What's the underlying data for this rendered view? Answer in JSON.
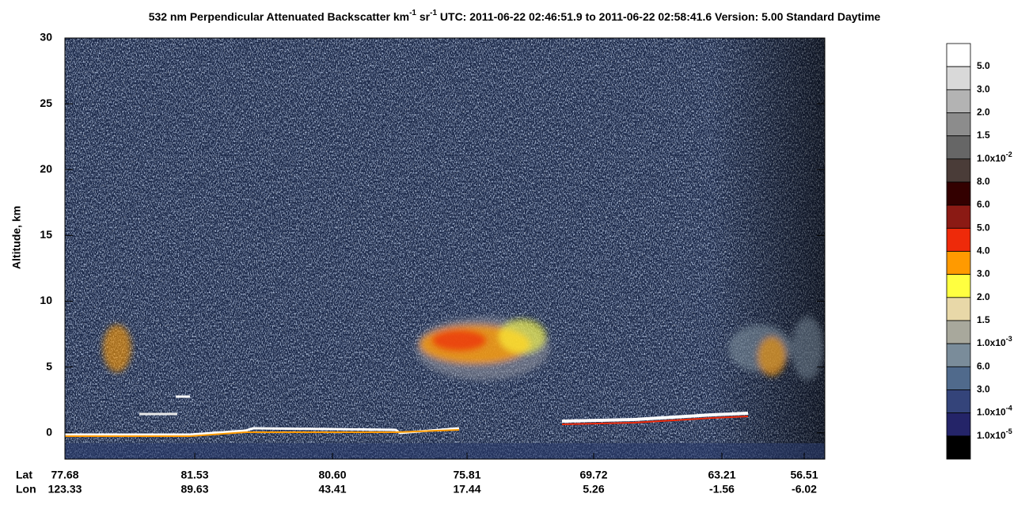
{
  "chart_data": {
    "type": "heatmap",
    "title_parts": [
      "532 nm Perpendicular Attenuated Backscatter km",
      "-1",
      " sr",
      "-1",
      "  UTC: 2011-06-22 02:46:51.9 to 2011-06-22 02:58:41.6  Version: 5.00 Standard Daytime"
    ],
    "ylabel": "Altitude, km",
    "ylim": [
      -2,
      30
    ],
    "yticks": [
      0,
      5,
      10,
      15,
      20,
      25,
      30
    ],
    "x_rows": [
      {
        "name": "Lat",
        "values": [
          77.68,
          81.53,
          80.6,
          75.81,
          69.72,
          63.21,
          56.51
        ],
        "value_labels": [
          "77.68",
          "81.53",
          "80.60",
          "75.81",
          "69.72",
          "63.21",
          "56.51"
        ]
      },
      {
        "name": "Lon",
        "values": [
          123.33,
          89.63,
          43.41,
          17.44,
          5.26,
          -1.56,
          -6.02
        ]
      }
    ],
    "colorbar": {
      "colors": [
        "#ffffff",
        "#d9d9d9",
        "#b3b3b3",
        "#8c8c8c",
        "#666666",
        "#4a3c38",
        "#330000",
        "#8b1a14",
        "#ee2a0a",
        "#ff9a00",
        "#ffff40",
        "#e8d8a8",
        "#a8a89c",
        "#7a8c9a",
        "#506a8c",
        "#34447a",
        "#242468",
        "#000000"
      ],
      "labels": [
        {
          "base": "5.0"
        },
        {
          "base": "3.0"
        },
        {
          "base": "2.0"
        },
        {
          "base": "1.5"
        },
        {
          "base": "1.0x10",
          "exp": "-2"
        },
        {
          "base": "8.0"
        },
        {
          "base": "6.0"
        },
        {
          "base": "5.0"
        },
        {
          "base": "4.0"
        },
        {
          "base": "3.0"
        },
        {
          "base": "2.0"
        },
        {
          "base": "1.5"
        },
        {
          "base": "1.0x10",
          "exp": "-3"
        },
        {
          "base": "6.0"
        },
        {
          "base": "3.0"
        },
        {
          "base": "1.0x10",
          "exp": "-4"
        },
        {
          "base": "1.0x10",
          "exp": "-5"
        }
      ]
    }
  }
}
